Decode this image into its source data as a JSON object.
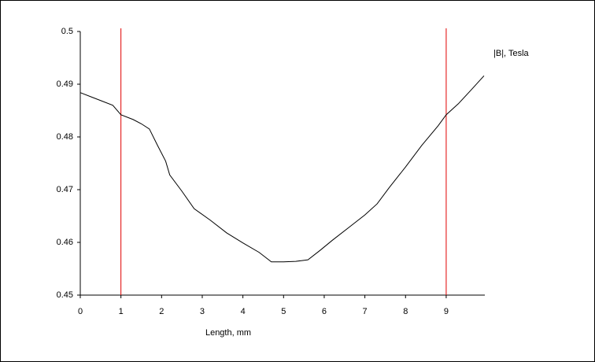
{
  "chart_data": {
    "type": "line",
    "x_label": "Length, mm",
    "x": [
      0,
      0.3,
      0.5,
      0.8,
      1.0,
      1.3,
      1.5,
      1.7,
      1.9,
      2.1,
      2.2,
      2.5,
      2.8,
      3.2,
      3.6,
      4.0,
      4.4,
      4.7,
      5.0,
      5.3,
      5.6,
      5.9,
      6.2,
      6.6,
      7.0,
      7.3,
      7.6,
      8.0,
      8.4,
      8.8,
      9.0,
      9.3,
      9.6,
      9.93
    ],
    "series": [
      {
        "name": "|B|, Tesla",
        "color": "#000000",
        "values": [
          0.4884,
          0.4875,
          0.4869,
          0.486,
          0.4842,
          0.4833,
          0.4825,
          0.4815,
          0.4784,
          0.4754,
          0.4728,
          0.4697,
          0.4664,
          0.4642,
          0.4618,
          0.4599,
          0.4581,
          0.4563,
          0.4563,
          0.4564,
          0.4567,
          0.4585,
          0.4604,
          0.4628,
          0.4652,
          0.4673,
          0.4704,
          0.4743,
          0.4784,
          0.4821,
          0.4842,
          0.4863,
          0.4888,
          0.4916
        ]
      }
    ],
    "markers": {
      "x": [
        1,
        9
      ],
      "color": "#e00000"
    },
    "xlim": [
      0,
      9.95
    ],
    "xticks": [
      0,
      1,
      2,
      3,
      4,
      5,
      6,
      7,
      8,
      9
    ],
    "ylim": [
      0.45,
      0.5
    ],
    "yticks": [
      0.45,
      0.46,
      0.47,
      0.48,
      0.49,
      0.5
    ],
    "grid": false,
    "legend": "top-right"
  }
}
